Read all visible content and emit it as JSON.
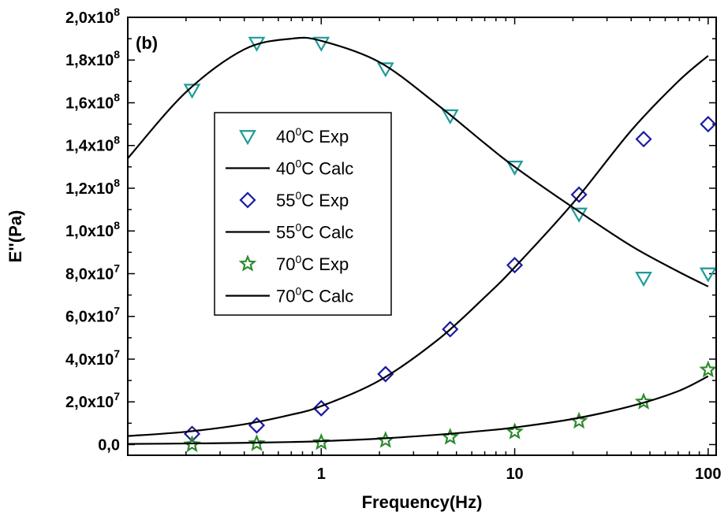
{
  "chart_data": {
    "type": "scatter",
    "panel_label": "(b)",
    "xlabel": "Frequency(Hz)",
    "ylabel": "E''(Pa)",
    "xscale": "log",
    "xlim": [
      0.1,
      110
    ],
    "ylim": [
      -5000000,
      200000000
    ],
    "x_ticks": [
      {
        "value": 1,
        "label": "1"
      },
      {
        "value": 10,
        "label": "10"
      },
      {
        "value": 100,
        "label": "100"
      }
    ],
    "y_ticks": [
      {
        "value": 0,
        "mantissa": "0,0",
        "exp": ""
      },
      {
        "value": 20000000,
        "mantissa": "2,0x10",
        "exp": "7"
      },
      {
        "value": 40000000,
        "mantissa": "4,0x10",
        "exp": "7"
      },
      {
        "value": 60000000,
        "mantissa": "6,0x10",
        "exp": "7"
      },
      {
        "value": 80000000,
        "mantissa": "8,0x10",
        "exp": "7"
      },
      {
        "value": 100000000,
        "mantissa": "1,0x10",
        "exp": "8"
      },
      {
        "value": 120000000,
        "mantissa": "1,2x10",
        "exp": "8"
      },
      {
        "value": 140000000,
        "mantissa": "1,4x10",
        "exp": "8"
      },
      {
        "value": 160000000,
        "mantissa": "1,6x10",
        "exp": "8"
      },
      {
        "value": 180000000,
        "mantissa": "1,8x10",
        "exp": "8"
      },
      {
        "value": 200000000,
        "mantissa": "2,0x10",
        "exp": "8"
      }
    ],
    "legend_position": "center-left",
    "series": [
      {
        "name": "40⁰C Exp",
        "legend_temp": "40",
        "legend_sup": "0",
        "legend_rest": "C Exp",
        "kind": "markers",
        "marker": "triangle-down",
        "color": "#1f9a9a",
        "x": [
          0.215,
          0.464,
          1,
          2.15,
          4.64,
          10,
          21.5,
          46.4,
          100
        ],
        "y": [
          166000000,
          188000000,
          188000000,
          176000000,
          154000000,
          130000000,
          108000000,
          78000000,
          80000000
        ]
      },
      {
        "name": "40⁰C Calc",
        "legend_temp": "40",
        "legend_sup": "0",
        "legend_rest": "C Calc",
        "kind": "line",
        "color": "#000000",
        "x": [
          0.1,
          0.2,
          0.4,
          0.7,
          1,
          2,
          4,
          7,
          10,
          20,
          40,
          70,
          100
        ],
        "y": [
          134000000,
          165000000,
          185000000,
          190000000,
          189000000,
          179000000,
          159000000,
          141000000,
          130000000,
          111000000,
          93000000,
          81000000,
          74000000
        ]
      },
      {
        "name": "55⁰C Exp",
        "legend_temp": "55",
        "legend_sup": "0",
        "legend_rest": "C Exp",
        "kind": "markers",
        "marker": "diamond",
        "color": "#1a1aa0",
        "x": [
          0.215,
          0.464,
          1,
          2.15,
          4.64,
          10,
          21.5,
          46.4,
          100
        ],
        "y": [
          5000000,
          9000000,
          17000000,
          33000000,
          54000000,
          84000000,
          117000000,
          143000000,
          150000000
        ]
      },
      {
        "name": "55⁰C Calc",
        "legend_temp": "55",
        "legend_sup": "0",
        "legend_rest": "C Calc",
        "kind": "line",
        "color": "#000000",
        "x": [
          0.1,
          0.2,
          0.4,
          0.7,
          1,
          2,
          4,
          7,
          10,
          20,
          40,
          70,
          100
        ],
        "y": [
          4000000,
          6000000,
          9500000,
          14000000,
          18000000,
          30000000,
          49000000,
          69000000,
          83000000,
          113000000,
          147000000,
          170000000,
          182000000
        ]
      },
      {
        "name": "70⁰C Exp",
        "legend_temp": "70",
        "legend_sup": "0",
        "legend_rest": "C Exp",
        "kind": "markers",
        "marker": "star",
        "color": "#2e8b2e",
        "x": [
          0.215,
          0.464,
          1,
          2.15,
          4.64,
          10,
          21.5,
          46.4,
          100
        ],
        "y": [
          0,
          500000,
          1000000,
          2000000,
          3500000,
          6000000,
          11000000,
          20000000,
          35000000
        ]
      },
      {
        "name": "70⁰C Calc",
        "legend_temp": "70",
        "legend_sup": "0",
        "legend_rest": "C Calc",
        "kind": "line",
        "color": "#000000",
        "x": [
          0.1,
          0.2,
          0.4,
          0.7,
          1,
          2,
          4,
          7,
          10,
          20,
          40,
          70,
          100
        ],
        "y": [
          300000,
          500000,
          800000,
          1200000,
          1600000,
          2800000,
          4600000,
          6500000,
          8000000,
          12000000,
          18000000,
          25000000,
          32000000
        ]
      }
    ]
  }
}
